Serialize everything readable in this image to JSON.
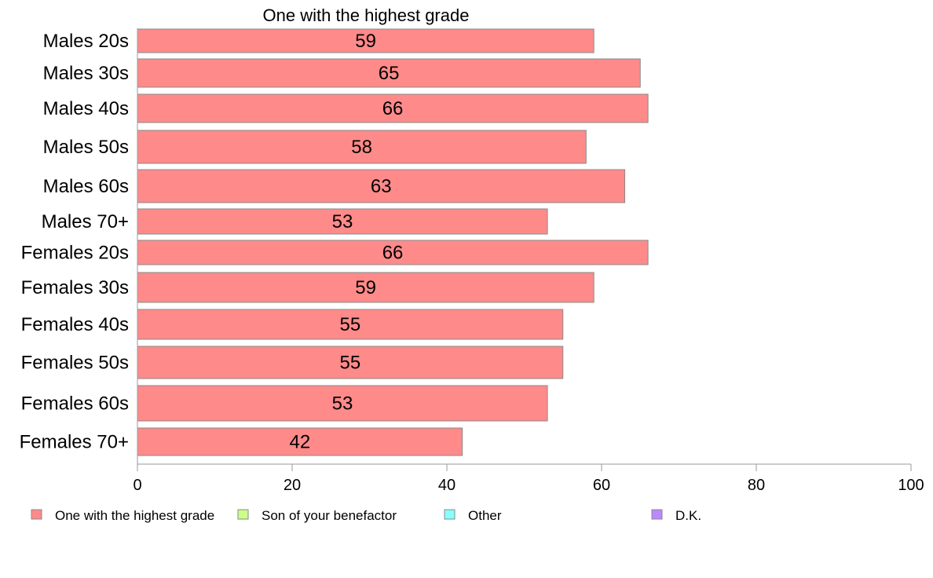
{
  "chart_data": {
    "type": "bar",
    "orientation": "horizontal",
    "title": "One with the highest grade",
    "categories": [
      "Males 20s",
      "Males 30s",
      "Males 40s",
      "Males 50s",
      "Males 60s",
      "Males 70+",
      "Females 20s",
      "Females 30s",
      "Females 40s",
      "Females 50s",
      "Females 60s",
      "Females 70+"
    ],
    "series": [
      {
        "name": "One with the highest grade",
        "color": "#ff8a8a",
        "values": [
          59,
          65,
          66,
          58,
          63,
          53,
          66,
          59,
          55,
          55,
          53,
          42
        ]
      }
    ],
    "xlim": [
      0,
      100
    ],
    "xticks": [
      0,
      20,
      40,
      60,
      80,
      100
    ],
    "grid": false,
    "legend": {
      "placement": "bottom",
      "items": [
        {
          "label": "One with the highest grade",
          "color": "#ff8a8a"
        },
        {
          "label": "Son of your benefactor",
          "color": "#ccff88"
        },
        {
          "label": "Other",
          "color": "#88ffff"
        },
        {
          "label": "D.K.",
          "color": "#bb88ff"
        }
      ]
    }
  }
}
